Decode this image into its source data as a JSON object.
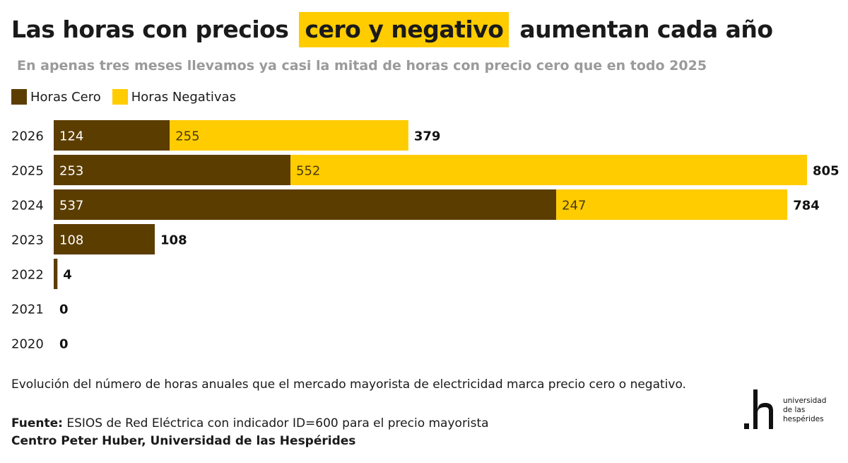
{
  "header": {
    "title_before": "Las horas con precios",
    "title_highlight": "cero y negativo",
    "title_after": "aumentan cada año",
    "subtitle": "En apenas tres meses llevamos ya casi la mitad de horas con precio cero que en todo 2025"
  },
  "legend": {
    "items": [
      {
        "label": "Horas Cero",
        "color": "#5c3d00"
      },
      {
        "label": "Horas Negativas",
        "color": "#ffcc00"
      }
    ]
  },
  "chart_data": {
    "type": "bar",
    "orientation": "horizontal",
    "stacked": true,
    "categories": [
      "2026",
      "2025",
      "2024",
      "2023",
      "2022",
      "2021",
      "2020"
    ],
    "series": [
      {
        "name": "Horas Cero",
        "color": "#5c3d00",
        "values": [
          124,
          253,
          537,
          108,
          4,
          0,
          0
        ]
      },
      {
        "name": "Horas Negativas",
        "color": "#ffcc00",
        "values": [
          255,
          552,
          247,
          0,
          0,
          0,
          0
        ]
      }
    ],
    "totals": [
      379,
      805,
      784,
      108,
      4,
      0,
      0
    ],
    "xlim": [
      0,
      805
    ],
    "grid": false,
    "title": "Las horas con precios cero y negativo aumentan cada año",
    "xlabel": "",
    "ylabel": ""
  },
  "footer": {
    "note": "Evolución del número de horas anuales que el mercado mayorista de electricidad marca precio cero o negativo.",
    "source_label": "Fuente:",
    "source_text": "ESIOS de Red Eléctrica con indicador ID=600 para el precio mayorista",
    "credit": "Centro Peter Huber, Universidad de las Hespérides"
  },
  "logo": {
    "mark": ".h",
    "lines": [
      "universidad",
      "de las",
      "hespérides"
    ]
  }
}
